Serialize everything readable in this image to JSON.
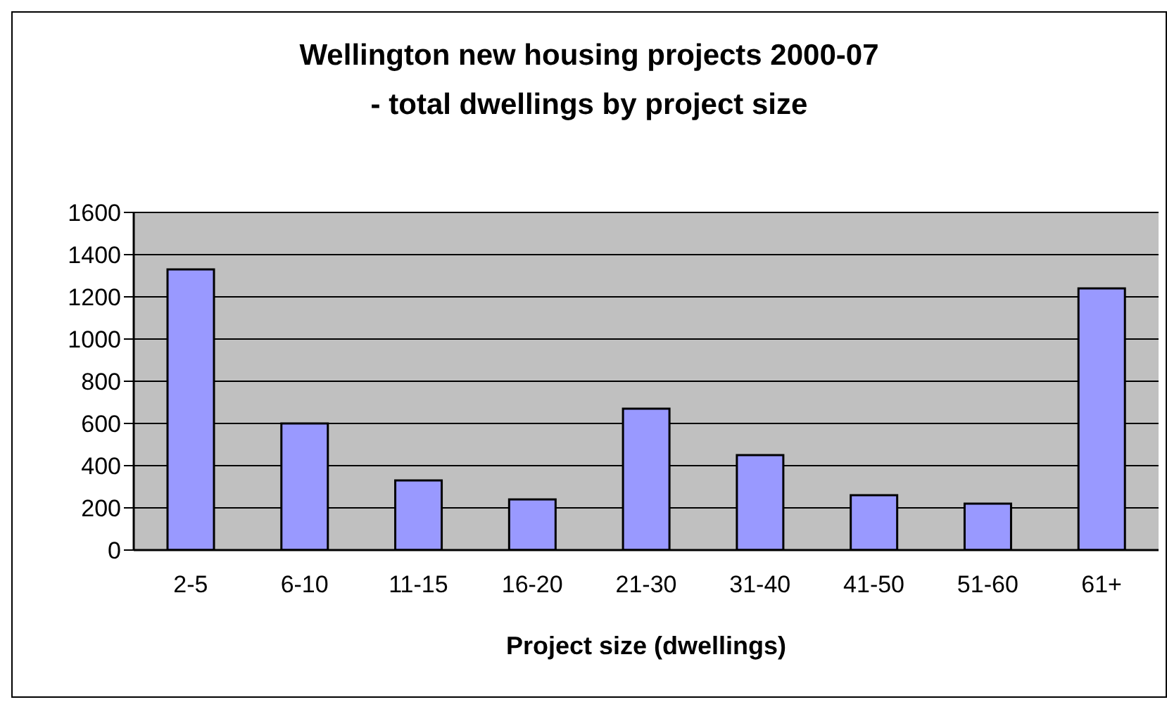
{
  "chart_data": {
    "type": "bar",
    "title": "Wellington new housing projects 2000-07\n- total dwellings by project size",
    "xlabel": "Project size (dwellings)",
    "categories": [
      "2-5",
      "6-10",
      "11-15",
      "16-20",
      "21-30",
      "31-40",
      "41-50",
      "51-60",
      "61+"
    ],
    "values": [
      1330,
      600,
      330,
      240,
      670,
      450,
      260,
      220,
      1240
    ],
    "color": "#9999ff",
    "ylim": [
      0,
      1600
    ],
    "yticks": [
      0,
      200,
      400,
      600,
      800,
      1000,
      1200,
      1400,
      1600
    ],
    "grid": "y"
  }
}
